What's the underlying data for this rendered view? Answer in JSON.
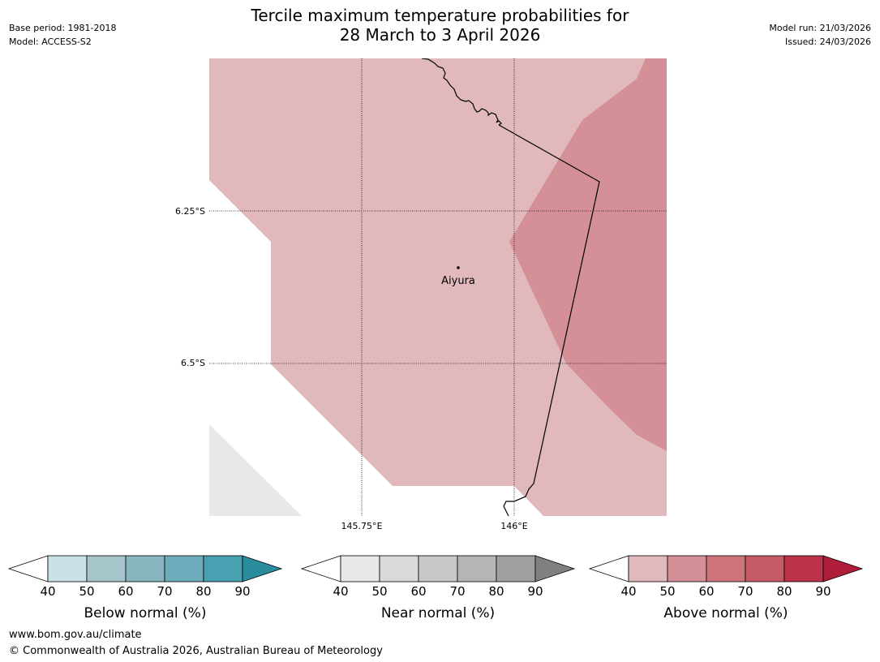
{
  "header": {
    "title_line1": "Tercile maximum temperature probabilities for",
    "title_line2": "28 March to 3 April 2026",
    "base_period": "Base period: 1981-2018",
    "model": "Model: ACCESS-S2",
    "model_run": "Model run: 21/03/2026",
    "issued": "Issued: 24/03/2026"
  },
  "map": {
    "place_label": "Aiyura",
    "lat_labels": [
      "6.25°S",
      "6.5°S"
    ],
    "lon_labels": [
      "145.75°E",
      "146°E"
    ]
  },
  "legends": [
    {
      "title": "Below normal (%)",
      "ticks": [
        "40",
        "50",
        "60",
        "70",
        "80",
        "90"
      ],
      "colors": [
        "#ffffff",
        "#c8e1e6",
        "#a6c5ca",
        "#89b5c1",
        "#6dacba",
        "#47a1b0",
        "#2b8c9e"
      ]
    },
    {
      "title": "Near normal (%)",
      "ticks": [
        "40",
        "50",
        "60",
        "70",
        "80",
        "90"
      ],
      "colors": [
        "#ffffff",
        "#e8e8e8",
        "#d9d9d9",
        "#c8c8c8",
        "#b5b5b5",
        "#a0a0a0",
        "#808080"
      ]
    },
    {
      "title": "Above normal (%)",
      "ticks": [
        "40",
        "50",
        "60",
        "70",
        "80",
        "90"
      ],
      "colors": [
        "#ffffff",
        "#e1b9bd",
        "#d49096",
        "#cd747b",
        "#c65a66",
        "#bc334b",
        "#b01d3b"
      ]
    }
  ],
  "footer": {
    "url": "www.bom.gov.au/climate",
    "copyright": "© Commonwealth of Australia 2026, Australian Bureau of Meteorology"
  }
}
